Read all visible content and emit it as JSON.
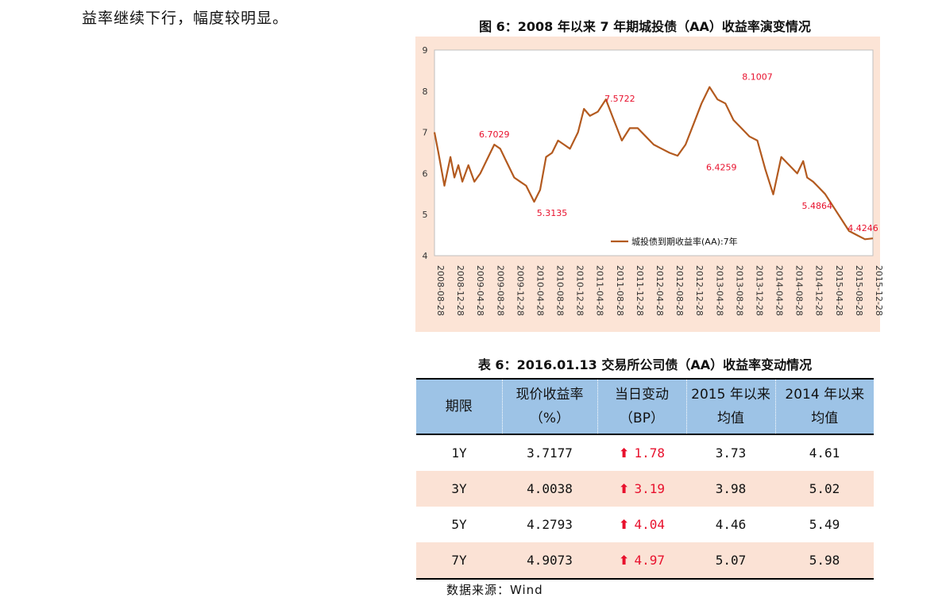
{
  "intro": {
    "text": "益率继续下行，幅度较明显。"
  },
  "figure": {
    "title": "图 6：2008 年以来 7 年期城投债（AA）收益率演变情况"
  },
  "chart_data": {
    "type": "line",
    "ylim": [
      4,
      9
    ],
    "yticks": [
      "4",
      "5",
      "6",
      "7",
      "8",
      "9"
    ],
    "xticks": [
      "2008-08-28",
      "2008-12-28",
      "2009-04-28",
      "2009-08-28",
      "2009-12-28",
      "2010-04-28",
      "2010-08-28",
      "2010-12-28",
      "2011-04-28",
      "2011-08-28",
      "2011-12-28",
      "2012-04-28",
      "2012-08-28",
      "2012-12-28",
      "2013-04-28",
      "2013-08-28",
      "2013-12-28",
      "2014-04-28",
      "2014-08-28",
      "2014-12-28",
      "2015-04-28",
      "2015-08-28",
      "2015-12-28"
    ],
    "line_color": "#b35a1f",
    "label_color": "#e8112d",
    "grid": false,
    "legend_position": "bottom-right",
    "series": [
      {
        "name": "城投债到期收益率(AA):7年",
        "x": [
          0,
          0.2,
          0.5,
          0.8,
          1.0,
          1.2,
          1.4,
          1.7,
          2.0,
          2.3,
          2.6,
          3.0,
          3.3,
          3.6,
          4.0,
          4.3,
          4.6,
          5.0,
          5.3,
          5.6,
          5.9,
          6.2,
          6.5,
          6.8,
          7.2,
          7.5,
          7.8,
          8.2,
          8.6,
          9.0,
          9.4,
          9.8,
          10.2,
          10.6,
          11.0,
          11.4,
          11.8,
          12.2,
          12.6,
          13.0,
          13.4,
          13.8,
          14.2,
          14.6,
          15.0,
          15.4,
          15.8,
          16.2,
          16.6,
          17.0,
          17.4,
          17.8,
          18.2,
          18.5,
          18.7,
          19.0,
          19.2,
          19.6,
          20.0,
          20.4,
          20.8,
          21.2,
          21.6,
          22.0
        ],
        "y": [
          7.0,
          6.5,
          5.7,
          6.4,
          5.9,
          6.2,
          5.8,
          6.2,
          5.8,
          6.0,
          6.3,
          6.7,
          6.6,
          6.3,
          5.9,
          5.8,
          5.7,
          5.31,
          5.6,
          6.4,
          6.5,
          6.8,
          6.7,
          6.6,
          7.0,
          7.57,
          7.4,
          7.5,
          7.8,
          7.3,
          6.8,
          7.1,
          7.1,
          6.9,
          6.7,
          6.6,
          6.5,
          6.43,
          6.7,
          7.2,
          7.7,
          8.1,
          7.8,
          7.7,
          7.3,
          7.1,
          6.9,
          6.8,
          6.1,
          5.49,
          6.4,
          6.2,
          6.0,
          6.3,
          5.9,
          5.8,
          5.7,
          5.5,
          5.2,
          4.9,
          4.6,
          4.5,
          4.4,
          4.42
        ]
      }
    ],
    "annotations": [
      {
        "label": "6.7029",
        "x": 3.0,
        "y": 6.7029,
        "pos": "above"
      },
      {
        "label": "5.3135",
        "x": 5.9,
        "y": 5.3135,
        "pos": "below"
      },
      {
        "label": "7.5722",
        "x": 9.3,
        "y": 7.5722,
        "pos": "above"
      },
      {
        "label": "6.4259",
        "x": 14.4,
        "y": 6.4259,
        "pos": "below"
      },
      {
        "label": "8.1007",
        "x": 16.2,
        "y": 8.1007,
        "pos": "above"
      },
      {
        "label": "5.4864",
        "x": 19.2,
        "y": 5.4864,
        "pos": "below"
      },
      {
        "label": "4.4246",
        "x": 21.5,
        "y": 4.4246,
        "pos": "above"
      }
    ]
  },
  "table": {
    "title": "表 6：2016.01.13 交易所公司债（AA）收益率变动情况",
    "headers": {
      "term": "期限",
      "yield": [
        "现价收益率",
        "（%）"
      ],
      "change": [
        "当日变动",
        "（BP）"
      ],
      "avg2015": [
        "2015 年以来",
        "均值"
      ],
      "avg2014": [
        "2014 年以来",
        "均值"
      ]
    },
    "arrow_icon": "up-arrow-icon",
    "arrow_glyph": "⬆",
    "rows": [
      {
        "term": "1Y",
        "yield": "3.7177",
        "change": "1.78",
        "avg2015": "3.73",
        "avg2014": "4.61"
      },
      {
        "term": "3Y",
        "yield": "4.0038",
        "change": "3.19",
        "avg2015": "3.98",
        "avg2014": "5.02"
      },
      {
        "term": "5Y",
        "yield": "4.2793",
        "change": "4.04",
        "avg2015": "4.46",
        "avg2014": "5.49"
      },
      {
        "term": "7Y",
        "yield": "4.9073",
        "change": "4.97",
        "avg2015": "5.07",
        "avg2014": "5.98"
      }
    ]
  },
  "source": {
    "text": "数据来源：Wind"
  }
}
